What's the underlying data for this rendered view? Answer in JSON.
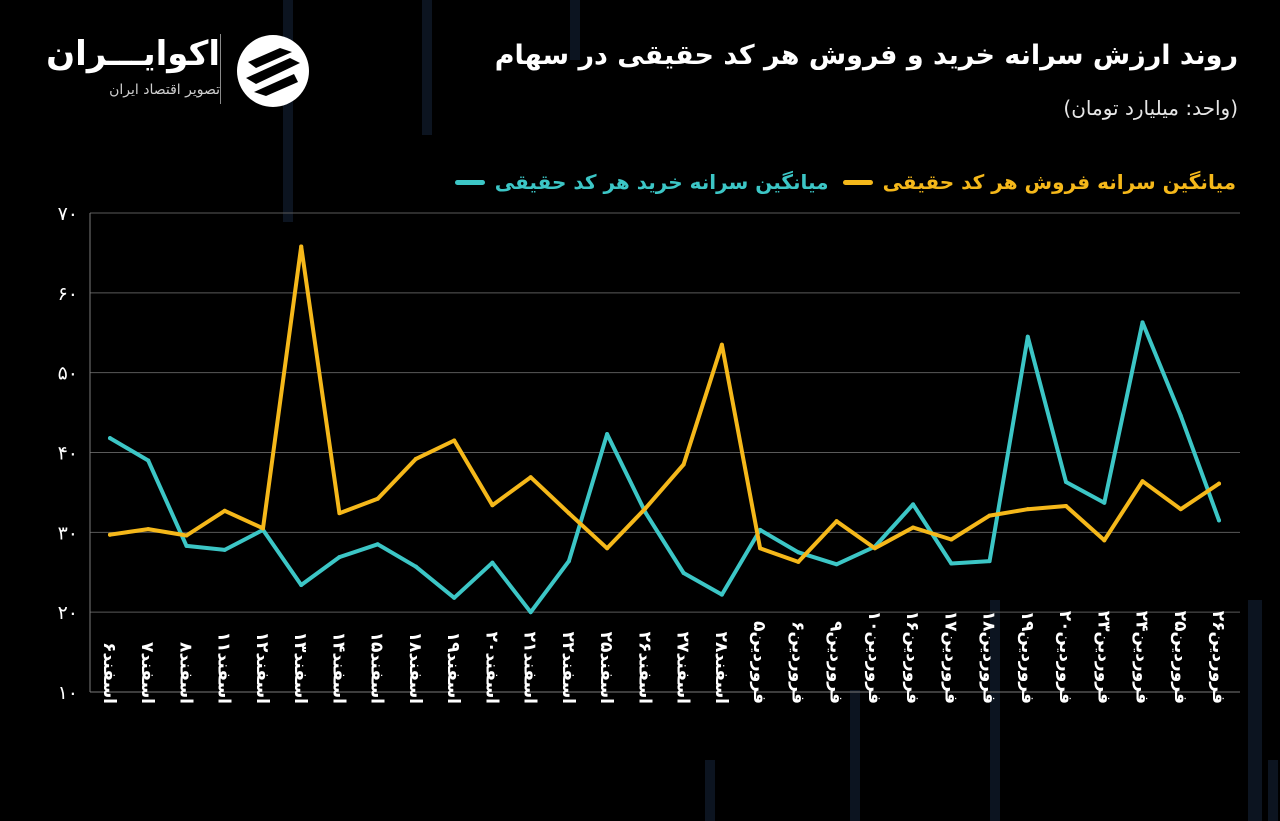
{
  "header": {
    "title": "روند ارزش سرانه خرید و فروش هر کد حقیقی در سهام",
    "subtitle": "(واحد: میلیارد تومان)"
  },
  "logo": {
    "name": "اکوایـــران",
    "tagline": "تصویر اقتصاد ایران"
  },
  "colors": {
    "background": "#000000",
    "buy": "#3cc6c6",
    "sell": "#f5b81a",
    "grid": "#5a5a5a",
    "text": "#ffffff"
  },
  "chart_data": {
    "type": "line",
    "ylim": [
      10,
      70
    ],
    "yticks": [
      10,
      20,
      30,
      40,
      50,
      60,
      70
    ],
    "ytick_labels": [
      "۱۰",
      "۲۰",
      "۳۰",
      "۴۰",
      "۵۰",
      "۶۰",
      "۷۰"
    ],
    "grid": "horizontal",
    "legend_position": "top-right",
    "categories": [
      "اسفند۶",
      "اسفند۷",
      "اسفند۸",
      "اسفند۱۱",
      "اسفند۱۲",
      "اسفند۱۳",
      "اسفند۱۴",
      "اسفند۱۵",
      "اسفند۱۸",
      "اسفند۱۹",
      "اسفند۲۰",
      "اسفند۲۱",
      "اسفند۲۲",
      "اسفند۲۵",
      "اسفند۲۶",
      "اسفند۲۷",
      "اسفند۲۸",
      "فروردین۵",
      "فروردین۶",
      "فروردین۹",
      "فروردین۱۰",
      "فروردین۱۶",
      "فروردین۱۷",
      "فروردین۱۸",
      "فروردین۱۹",
      "فروردین۲۰",
      "فروردین۲۳",
      "فروردین۲۴",
      "فروردین۲۵",
      "فروردین۲۶"
    ],
    "series": [
      {
        "name": "میانگین سرانه خرید هر کد حقیقی",
        "color": "#3cc6c6",
        "values": [
          41.8,
          39.0,
          28.3,
          27.8,
          30.3,
          23.4,
          26.9,
          28.5,
          25.7,
          21.8,
          26.2,
          20.0,
          26.4,
          42.3,
          32.5,
          24.9,
          22.2,
          30.3,
          27.5,
          26.0,
          28.2,
          33.5,
          26.1,
          26.4,
          54.5,
          36.3,
          33.7,
          56.3,
          44.6,
          31.5
        ],
        "labels_shown": false
      },
      {
        "name": "میانگین سرانه فروش هر کد حقیقی",
        "color": "#f5b81a",
        "values": [
          29.7,
          30.4,
          29.6,
          32.7,
          30.5,
          65.8,
          32.4,
          34.2,
          39.2,
          41.5,
          33.4,
          36.9,
          32.4,
          28.0,
          33.0,
          38.5,
          53.5,
          28.0,
          26.3,
          31.4,
          28.0,
          30.6,
          29.1,
          32.1,
          32.9,
          33.3,
          29.0,
          36.4,
          32.9,
          36.1
        ],
        "labels_shown": false
      }
    ]
  }
}
